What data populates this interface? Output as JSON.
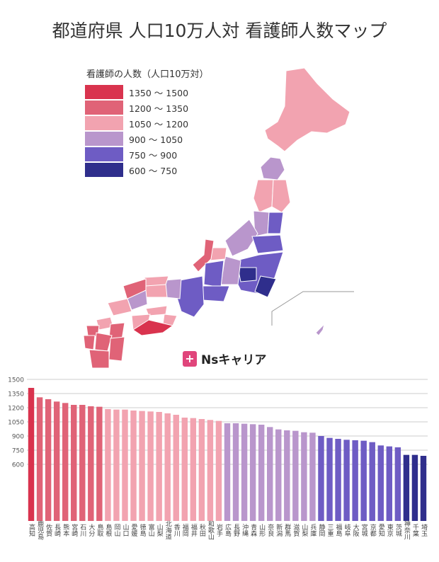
{
  "title": "都道府県 人口10万人対 看護師人数マップ",
  "legend": {
    "title": "看護師の人数（人口10万対）",
    "items": [
      {
        "label": "1350 〜 1500",
        "color": "#d9334e"
      },
      {
        "label": "1200 〜 1350",
        "color": "#e06377"
      },
      {
        "label": "1050 〜 1200",
        "color": "#f2a3b0"
      },
      {
        "label": "900 〜 1050",
        "color": "#b996cc"
      },
      {
        "label": "750 〜 900",
        "color": "#6e5cc4"
      },
      {
        "label": "600 〜 750",
        "color": "#2f2e8c"
      }
    ]
  },
  "brand": {
    "icon": "plus-icon",
    "name": "Nsキャリア"
  },
  "chart_data": {
    "type": "bar",
    "ylim": [
      0,
      1500
    ],
    "yticks": [
      600,
      750,
      900,
      1050,
      1200,
      1350,
      1500
    ],
    "categories": [
      "高知",
      "鹿児島",
      "佐賀",
      "長崎",
      "熊本",
      "宮崎",
      "石川",
      "大分",
      "鳥取",
      "島根",
      "岡山",
      "山口",
      "愛媛",
      "徳島",
      "富山",
      "山梨",
      "北海道",
      "香川",
      "福岡",
      "福井",
      "秋田",
      "和歌山",
      "岩手",
      "広島",
      "長野",
      "沖縄",
      "青森",
      "山形",
      "奈良",
      "新潟",
      "群馬",
      "滋賀",
      "山梨",
      "兵庫",
      "静岡",
      "三重",
      "福島",
      "岐阜",
      "大阪",
      "宮城",
      "京都",
      "愛知",
      "東京",
      "茨城",
      "神奈川",
      "千葉",
      "埼玉"
    ],
    "values": [
      1410,
      1310,
      1290,
      1265,
      1250,
      1230,
      1230,
      1215,
      1210,
      1185,
      1180,
      1180,
      1170,
      1165,
      1160,
      1155,
      1140,
      1125,
      1095,
      1090,
      1080,
      1070,
      1060,
      1035,
      1035,
      1030,
      1025,
      1020,
      995,
      970,
      960,
      955,
      940,
      935,
      900,
      880,
      870,
      860,
      855,
      850,
      835,
      800,
      790,
      780,
      700,
      700,
      690
    ],
    "colors": [
      "#d9334e",
      "#e06377",
      "#e06377",
      "#e06377",
      "#e06377",
      "#e06377",
      "#e06377",
      "#e06377",
      "#e06377",
      "#f2a3b0",
      "#f2a3b0",
      "#f2a3b0",
      "#f2a3b0",
      "#f2a3b0",
      "#f2a3b0",
      "#f2a3b0",
      "#f2a3b0",
      "#f2a3b0",
      "#f2a3b0",
      "#f2a3b0",
      "#f2a3b0",
      "#f2a3b0",
      "#f2a3b0",
      "#b996cc",
      "#b996cc",
      "#b996cc",
      "#b996cc",
      "#b996cc",
      "#b996cc",
      "#b996cc",
      "#b996cc",
      "#b996cc",
      "#b996cc",
      "#b996cc",
      "#6e5cc4",
      "#6e5cc4",
      "#6e5cc4",
      "#6e5cc4",
      "#6e5cc4",
      "#6e5cc4",
      "#6e5cc4",
      "#6e5cc4",
      "#6e5cc4",
      "#6e5cc4",
      "#2f2e8c",
      "#2f2e8c",
      "#2f2e8c"
    ]
  }
}
